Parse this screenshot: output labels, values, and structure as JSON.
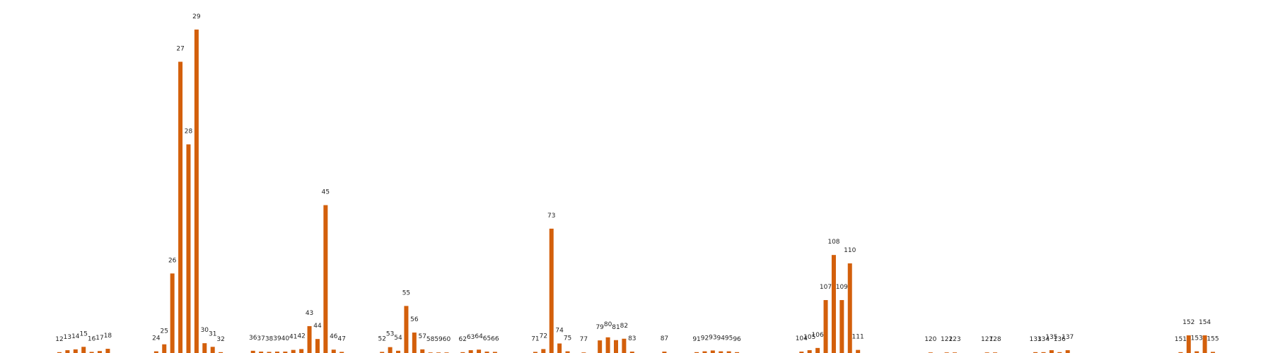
{
  "chart_data": {
    "type": "bar",
    "color": "#d35f0b",
    "categories": [
      12,
      13,
      14,
      15,
      16,
      17,
      18,
      24,
      25,
      26,
      27,
      28,
      29,
      30,
      31,
      32,
      36,
      37,
      38,
      39,
      40,
      41,
      42,
      43,
      44,
      45,
      46,
      47,
      52,
      53,
      54,
      55,
      56,
      57,
      58,
      59,
      60,
      62,
      63,
      64,
      65,
      66,
      71,
      72,
      73,
      74,
      75,
      77,
      79,
      80,
      81,
      82,
      83,
      87,
      91,
      92,
      93,
      94,
      95,
      96,
      104,
      105,
      106,
      107,
      108,
      109,
      110,
      111,
      120,
      122,
      123,
      127,
      128,
      133,
      134,
      135,
      136,
      137,
      151,
      152,
      153,
      154,
      155
    ],
    "values": [
      0.3,
      1.0,
      1.3,
      2.2,
      0.4,
      0.7,
      1.5,
      0.6,
      3.1,
      28.4,
      104,
      74.5,
      115.5,
      3.5,
      2.2,
      0.3,
      0.8,
      0.5,
      0.4,
      0.5,
      0.5,
      1.1,
      1.4,
      9.6,
      5.0,
      52.8,
      1.2,
      0.4,
      0.4,
      2.1,
      0.8,
      16.8,
      7.3,
      1.3,
      0.2,
      0.2,
      0.2,
      0.3,
      1.0,
      1.2,
      0.5,
      0.4,
      0.4,
      1.4,
      44.4,
      3.4,
      0.6,
      0.2,
      4.5,
      5.6,
      4.6,
      5.1,
      0.5,
      0.5,
      0.3,
      0.6,
      0.9,
      0.6,
      0.6,
      0.3,
      0.5,
      1.0,
      1.8,
      18.9,
      35.0,
      18.9,
      32.0,
      1.1,
      0.2,
      0.2,
      0.2,
      0.2,
      0.2,
      0.3,
      0.3,
      1.0,
      0.3,
      1.0,
      0.3,
      6.3,
      0.6,
      6.3,
      0.4
    ],
    "ylim": [
      0,
      120
    ],
    "xlim": [
      5,
      170
    ],
    "grid": false,
    "axes_visible": false
  }
}
